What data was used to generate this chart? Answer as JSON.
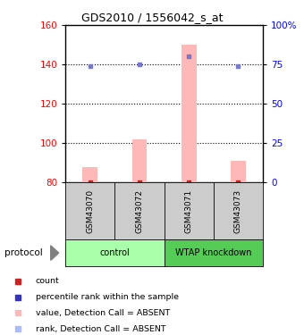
{
  "title": "GDS2010 / 1556042_s_at",
  "samples": [
    "GSM43070",
    "GSM43072",
    "GSM43071",
    "GSM43073"
  ],
  "bar_values": [
    88,
    102,
    150,
    91
  ],
  "dot_values": [
    139,
    140,
    144,
    139
  ],
  "bar_bottom": 80,
  "ylim_left": [
    80,
    160
  ],
  "ylim_right": [
    0,
    100
  ],
  "yticks_left": [
    80,
    100,
    120,
    140,
    160
  ],
  "yticks_right": [
    0,
    25,
    50,
    75,
    100
  ],
  "ytick_labels_right": [
    "0",
    "25",
    "50",
    "75",
    "100%"
  ],
  "bar_color": "#ffb8b8",
  "dot_color": "#7777cc",
  "dot_absent_color": "#aabbff",
  "count_color": "#cc2222",
  "control_color": "#aaffaa",
  "knockdown_color": "#55cc55",
  "sample_box_color": "#cccccc",
  "group_defs": [
    {
      "label": "control",
      "start": 0,
      "end": 2
    },
    {
      "label": "WTAP knockdown",
      "start": 2,
      "end": 4
    }
  ],
  "legend_items": [
    {
      "color": "#cc2222",
      "label": "count"
    },
    {
      "color": "#3333bb",
      "label": "percentile rank within the sample"
    },
    {
      "color": "#ffb8b8",
      "label": "value, Detection Call = ABSENT"
    },
    {
      "color": "#aabbff",
      "label": "rank, Detection Call = ABSENT"
    }
  ]
}
